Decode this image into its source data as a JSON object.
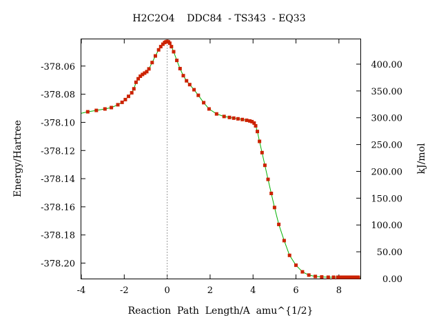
{
  "chart_data": {
    "type": "line",
    "title": "H2C2O4    DDC84  - TS343  - EQ33",
    "xlabel": "Reaction  Path  Length/A  amu^{1/2}",
    "ylabel": "Energy/Hartree",
    "y2label": "kJ/mol",
    "xlim": [
      -4,
      9
    ],
    "ylim": [
      -378.211,
      -378.041
    ],
    "y2lim": [
      0.0,
      446.3
    ],
    "x_ticks": [
      "-4",
      "-2",
      "0",
      "2",
      "4",
      "6",
      "8"
    ],
    "x_tick_values": [
      -4,
      -2,
      0,
      2,
      4,
      6,
      8
    ],
    "y_ticks": [
      "-378.06",
      "-378.08",
      "-378.10",
      "-378.12",
      "-378.14",
      "-378.16",
      "-378.18",
      "-378.20"
    ],
    "y_tick_values": [
      -378.06,
      -378.08,
      -378.1,
      -378.12,
      -378.14,
      -378.16,
      -378.18,
      -378.2
    ],
    "y2_ticks": [
      "400.00",
      "350.00",
      "300.00",
      "250.00",
      "200.00",
      "150.00",
      "100.00",
      "50.00",
      "0.00"
    ],
    "y2_tick_values": [
      400,
      350,
      300,
      250,
      200,
      150,
      100,
      50,
      0
    ],
    "ts_marker_x": 0,
    "grid": false,
    "legend": "none",
    "colors": {
      "curve": "#00b000",
      "points": "#cc2200",
      "marker_line": "#999999",
      "axes": "#000000"
    },
    "series": [
      {
        "x": [
          -3.7,
          -3.3,
          -2.9,
          -2.6,
          -2.3,
          -2.1,
          -1.95,
          -1.8,
          -1.65,
          -1.55,
          -1.45,
          -1.35,
          -1.25,
          -1.15,
          -1.05,
          -0.95,
          -0.85,
          -0.7,
          -0.55,
          -0.4,
          -0.3,
          -0.2,
          -0.12,
          -0.06,
          0.0,
          0.06,
          0.12,
          0.2,
          0.3,
          0.45,
          0.6,
          0.75,
          0.9,
          1.05,
          1.25,
          1.45,
          1.7,
          1.95,
          2.3,
          2.65,
          2.9,
          3.1,
          3.3,
          3.5,
          3.7,
          3.85,
          3.95,
          4.05,
          4.12,
          4.2,
          4.3,
          4.42,
          4.55,
          4.7,
          4.85,
          5.0,
          5.2,
          5.45,
          5.7,
          6.0,
          6.3,
          6.6,
          6.9,
          7.2,
          7.5,
          7.75,
          7.95,
          8.1,
          8.2,
          8.3,
          8.4,
          8.5,
          8.6,
          8.7,
          8.8,
          8.9
        ],
        "values": [
          -378.0925,
          -378.0915,
          -378.0905,
          -378.0895,
          -378.0875,
          -378.0858,
          -378.0838,
          -378.0815,
          -378.079,
          -378.0762,
          -378.0715,
          -378.069,
          -378.0672,
          -378.066,
          -378.065,
          -378.064,
          -378.062,
          -378.0575,
          -378.0528,
          -378.0485,
          -378.0462,
          -378.0445,
          -378.0433,
          -378.0428,
          -378.0425,
          -378.0428,
          -378.0438,
          -378.0462,
          -378.0498,
          -378.056,
          -378.0618,
          -378.0668,
          -378.0705,
          -378.0732,
          -378.0768,
          -378.0808,
          -378.086,
          -378.0905,
          -378.094,
          -378.0958,
          -378.0965,
          -378.097,
          -378.0975,
          -378.098,
          -378.0985,
          -378.099,
          -378.0995,
          -378.1005,
          -378.1025,
          -378.1065,
          -378.1135,
          -378.1215,
          -378.1305,
          -378.1405,
          -378.1505,
          -378.1605,
          -378.1725,
          -378.184,
          -378.1945,
          -378.2015,
          -378.2062,
          -378.2085,
          -378.2095,
          -378.2098,
          -378.21,
          -378.21,
          -378.21,
          -378.21,
          -378.21,
          -378.21,
          -378.21,
          -378.21,
          -378.21,
          -378.21,
          -378.21,
          -378.21
        ]
      }
    ]
  }
}
